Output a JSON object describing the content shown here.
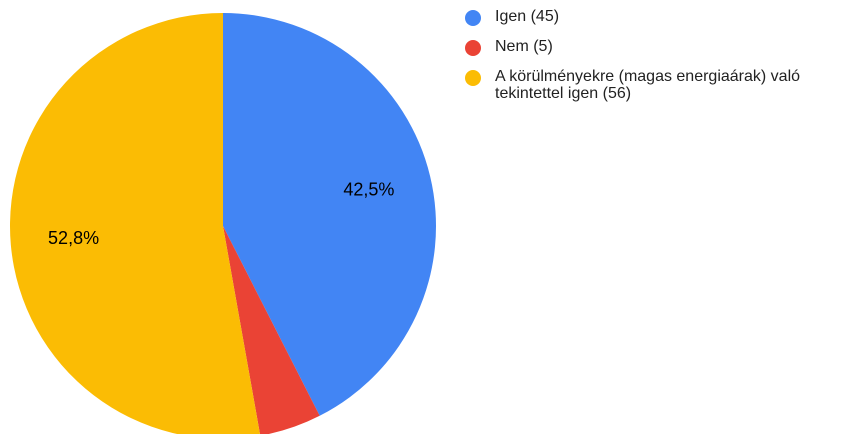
{
  "chart_data": {
    "type": "pie",
    "categories": [
      "Igen (45)",
      "Nem (5)",
      "A körülményekre (magas energiaárak) való tekintettel igen (56)"
    ],
    "values": [
      42.5,
      4.7,
      52.8
    ],
    "value_labels": [
      "42,5%",
      null,
      "52,8%"
    ],
    "colors": [
      "#4285f4",
      "#ea4335",
      "#fbbc04"
    ],
    "legend": "right"
  }
}
